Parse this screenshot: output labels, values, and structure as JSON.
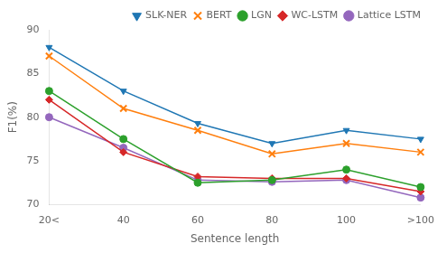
{
  "chart_data": {
    "type": "line",
    "categories": [
      "20<",
      "40",
      "60",
      "80",
      "100",
      ">100"
    ],
    "series": [
      {
        "name": "SLK-NER",
        "color": "#1f77b4",
        "marker": "triangle_down",
        "values": [
          88.0,
          83.0,
          79.3,
          77.0,
          78.5,
          77.5
        ]
      },
      {
        "name": "BERT",
        "color": "#ff7f0e",
        "marker": "x",
        "values": [
          87.0,
          81.0,
          78.5,
          75.8,
          77.0,
          76.0
        ]
      },
      {
        "name": "LGN",
        "color": "#2ca02c",
        "marker": "circle",
        "values": [
          83.0,
          77.5,
          72.5,
          72.8,
          74.0,
          72.0
        ]
      },
      {
        "name": "WC-LSTM",
        "color": "#d62728",
        "marker": "diamond",
        "values": [
          82.0,
          76.0,
          73.2,
          73.0,
          73.0,
          71.5
        ]
      },
      {
        "name": "Lattice LSTM",
        "color": "#9467bd",
        "marker": "circle",
        "values": [
          80.0,
          76.5,
          72.8,
          72.6,
          72.8,
          70.8
        ]
      }
    ],
    "x_label": "Sentence length",
    "y_label": "F1(%)",
    "ylim": [
      70,
      90
    ],
    "yticks": [
      70,
      75,
      80,
      85,
      90
    ],
    "grid": false,
    "legend": "upper right"
  }
}
